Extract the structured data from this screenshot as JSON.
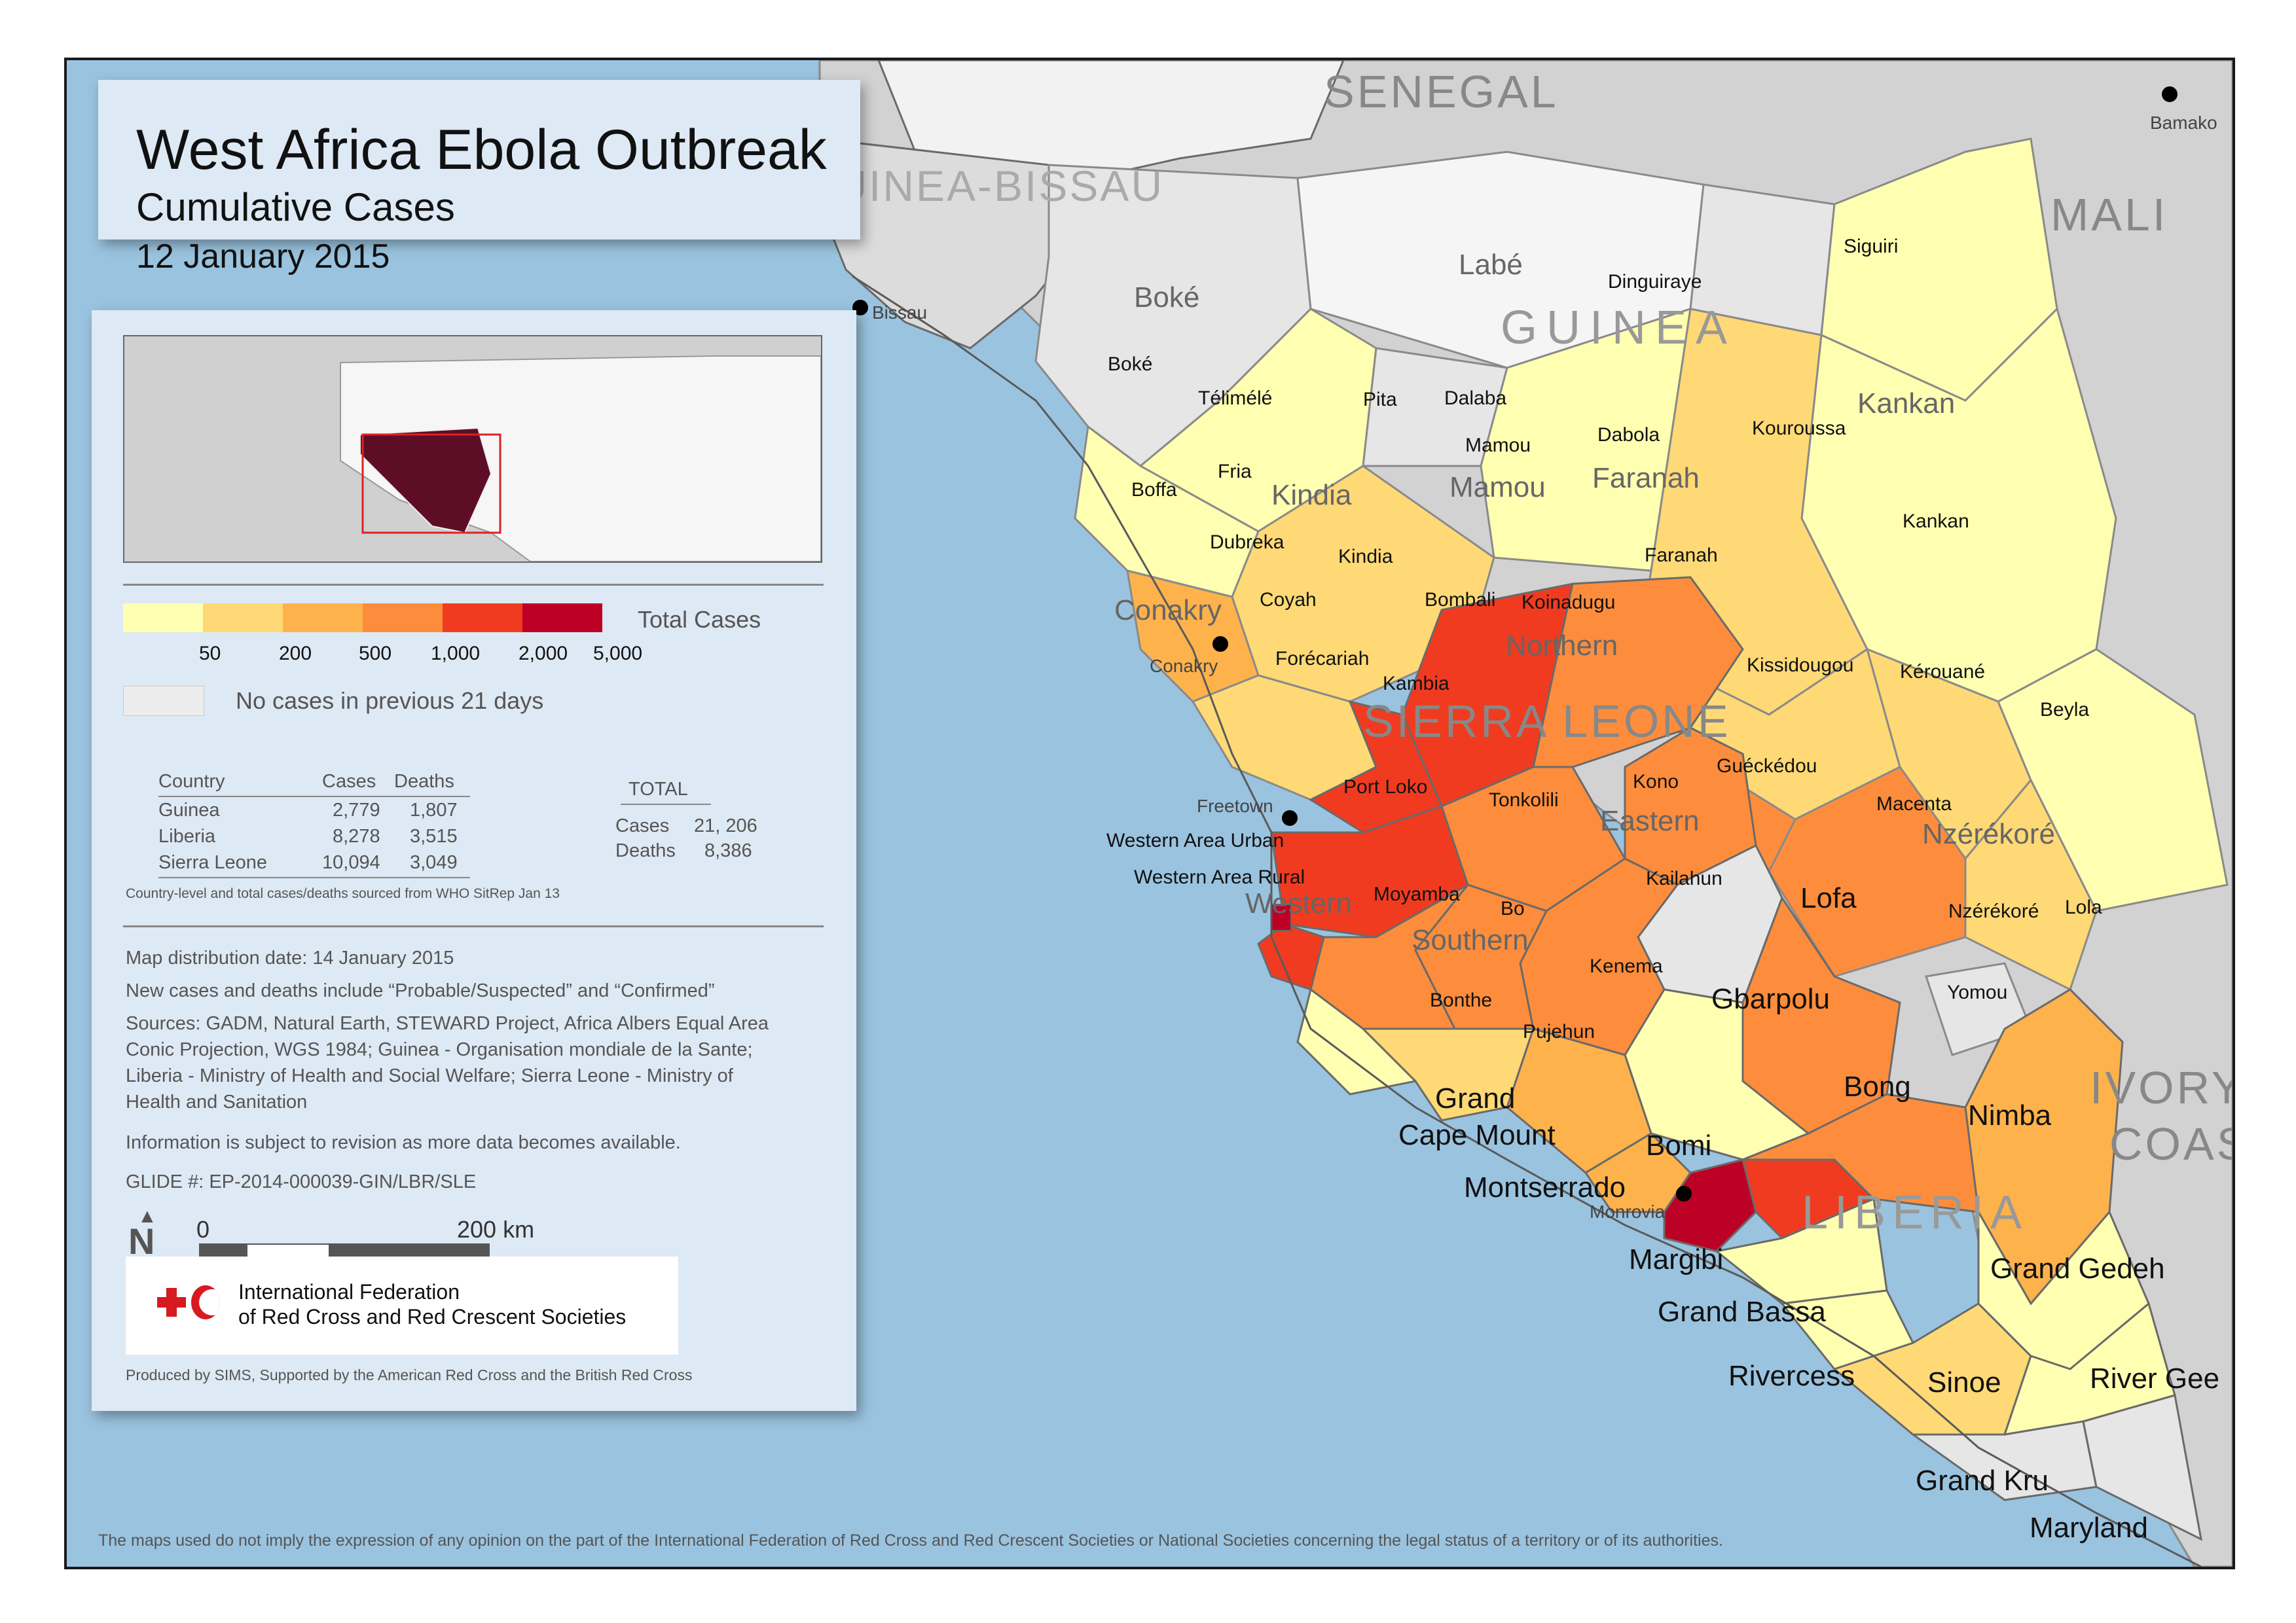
{
  "title": {
    "main": "West Africa Ebola Outbreak",
    "sub": "Cumulative Cases",
    "date": "12 January 2015"
  },
  "legend": {
    "ramp_title": "Total Cases",
    "ramp_colors": [
      "#ffffb2",
      "#fed976",
      "#feb24c",
      "#fd8d3c",
      "#f03b20",
      "#bd0026"
    ],
    "ramp_ticks": [
      "50",
      "200",
      "500",
      "1,000",
      "2,000",
      "5,000"
    ],
    "no_cases_color": "#ececec",
    "no_cases_label": "No cases in previous 21 days"
  },
  "country_table": {
    "headers": [
      "Country",
      "Cases",
      "Deaths"
    ],
    "rows": [
      [
        "Guinea",
        "2,779",
        "1,807"
      ],
      [
        "Liberia",
        "8,278",
        "3,515"
      ],
      [
        "Sierra Leone",
        "10,094",
        "3,049"
      ]
    ],
    "total_header": "TOTAL",
    "total_rows": [
      [
        "Cases",
        "21, 206"
      ],
      [
        "Deaths",
        "8,386"
      ]
    ],
    "source_note": "Country-level and total cases/deaths sourced from WHO SitRep Jan 13"
  },
  "notes": {
    "distribution": "Map distribution date: 14 January 2015",
    "definition": "New cases and deaths include “Probable/Suspected” and “Confirmed”",
    "sources_1": "Sources: GADM, Natural Earth, STEWARD Project, Africa Albers Equal Area",
    "sources_2": "Conic Projection, WGS 1984; Guinea - Organisation mondiale de la Sante;",
    "sources_3": "Liberia - Ministry of Health and Social  Welfare; Sierra Leone - Ministry of",
    "sources_4": "Health and Sanitation",
    "revision": "Information is subject to revision as more data becomes available.",
    "glide": "GLIDE #: EP-2014-000039-GIN/LBR/SLE"
  },
  "scale": {
    "north": "N",
    "zero": "0",
    "end": "200 km"
  },
  "ifrc": {
    "line1": "International Federation",
    "line2": "of Red Cross and Red Crescent Societies",
    "produced": "Produced by SIMS, Supported by the American Red Cross and the British Red Cross"
  },
  "disclaimer": "The maps used do not imply the expression of any opinion on the part of the International Federation of Red Cross and Red Crescent Societies or National Societies concerning the legal status of a territory or of its authorities.",
  "map_labels": {
    "countries": [
      "SENEGAL",
      "GUINEA-BISSAU",
      "MALI",
      "GUINEA",
      "SIERRA LEONE",
      "LIBERIA",
      "IVORY",
      "COAST"
    ],
    "regions": [
      "Boké",
      "Labé",
      "Kindia",
      "Mamou",
      "Faranah",
      "Kankan",
      "Conakry",
      "Northern",
      "Eastern",
      "Western",
      "Southern",
      "Nzérékoré"
    ],
    "districts": [
      "Siguiri",
      "Dinguiraye",
      "Boké",
      "Télimélé",
      "Pita",
      "Dalaba",
      "Mamou",
      "Dabola",
      "Kouroussa",
      "Boffa",
      "Fria",
      "Dubreka",
      "Kindia",
      "Coyah",
      "Forécariah",
      "Faranah",
      "Kankan",
      "Bombali",
      "Koinadugu",
      "Kambia",
      "Kissidougou",
      "Kérouané",
      "Beyla",
      "Port Loko",
      "Tonkolili",
      "Kono",
      "Guéckédou",
      "Macenta",
      "Western Area Urban",
      "Western Area Rural",
      "Moyamba",
      "Bo",
      "Kailahun",
      "Kenema",
      "Nzérékoré",
      "Lola",
      "Yomou",
      "Bonthe",
      "Pujehun"
    ],
    "liberia_counties": [
      "Lofa",
      "Gbarpolu",
      "Bong",
      "Nimba",
      "Grand",
      "Cape Mount",
      "Bomi",
      "Montserrado",
      "Margibi",
      "Grand Bassa",
      "Rivercess",
      "Sinoe",
      "River Gee",
      "Grand Gedeh",
      "Grand Kru",
      "Maryland"
    ],
    "cities": [
      "Bamako",
      "Bissau",
      "Conakry",
      "Freetown",
      "Monrovia"
    ]
  }
}
